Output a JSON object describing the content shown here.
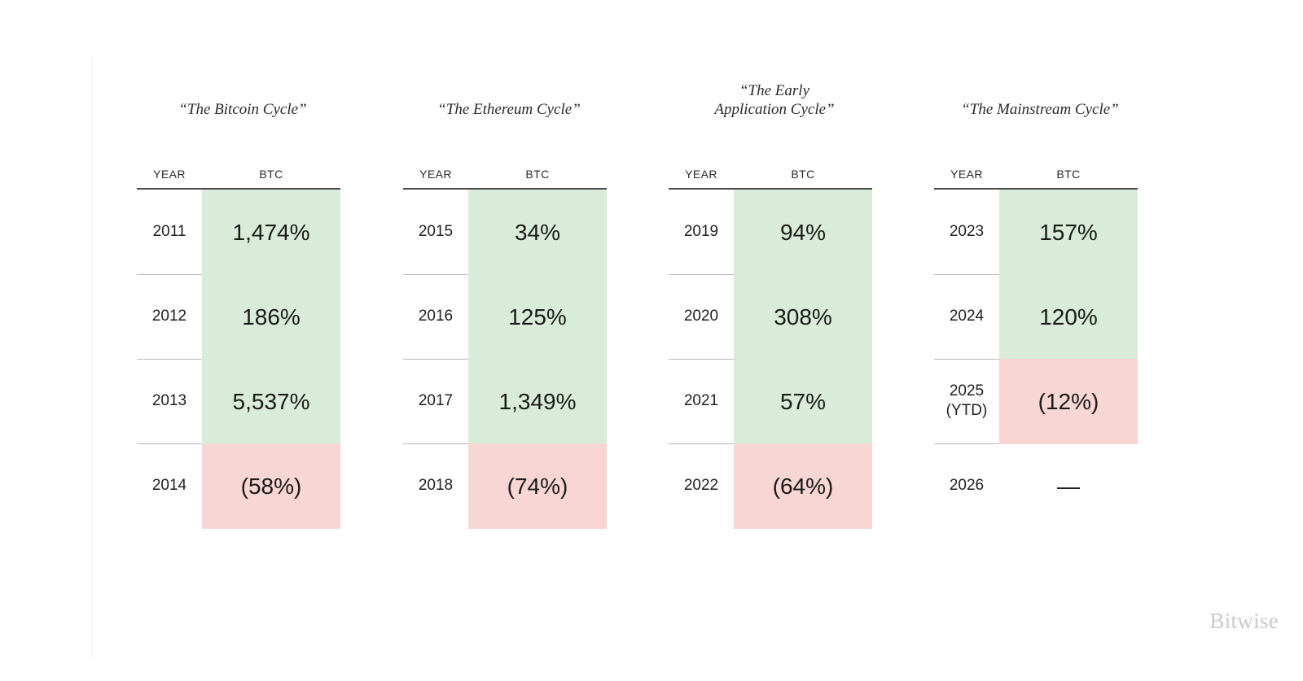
{
  "chart_data": {
    "type": "table",
    "columns": [
      "YEAR",
      "BTC"
    ],
    "cycles": [
      {
        "title": "“The Bitcoin Cycle”",
        "rows": [
          {
            "year": "2011",
            "btc": "1,474%",
            "value": 1474,
            "status": "pos"
          },
          {
            "year": "2012",
            "btc": "186%",
            "value": 186,
            "status": "pos"
          },
          {
            "year": "2013",
            "btc": "5,537%",
            "value": 5537,
            "status": "pos"
          },
          {
            "year": "2014",
            "btc": "(58%)",
            "value": -58,
            "status": "neg"
          }
        ]
      },
      {
        "title": "“The Ethereum Cycle”",
        "rows": [
          {
            "year": "2015",
            "btc": "34%",
            "value": 34,
            "status": "pos"
          },
          {
            "year": "2016",
            "btc": "125%",
            "value": 125,
            "status": "pos"
          },
          {
            "year": "2017",
            "btc": "1,349%",
            "value": 1349,
            "status": "pos"
          },
          {
            "year": "2018",
            "btc": "(74%)",
            "value": -74,
            "status": "neg"
          }
        ]
      },
      {
        "title": "“The Early\nApplication Cycle”",
        "rows": [
          {
            "year": "2019",
            "btc": "94%",
            "value": 94,
            "status": "pos"
          },
          {
            "year": "2020",
            "btc": "308%",
            "value": 308,
            "status": "pos"
          },
          {
            "year": "2021",
            "btc": "57%",
            "value": 57,
            "status": "pos"
          },
          {
            "year": "2022",
            "btc": "(64%)",
            "value": -64,
            "status": "neg"
          }
        ]
      },
      {
        "title": "“The Mainstream Cycle”",
        "rows": [
          {
            "year": "2023",
            "btc": "157%",
            "value": 157,
            "status": "pos"
          },
          {
            "year": "2024",
            "btc": "120%",
            "value": 120,
            "status": "pos"
          },
          {
            "year": "2025\n(YTD)",
            "btc": "(12%)",
            "value": -12,
            "status": "neg"
          },
          {
            "year": "2026",
            "btc": "—",
            "value": null,
            "status": "none"
          }
        ]
      }
    ],
    "colors": {
      "positive": "#d9ecd9",
      "negative": "#f7d6d4"
    }
  },
  "brand": {
    "logo_text": "Bitwise"
  }
}
